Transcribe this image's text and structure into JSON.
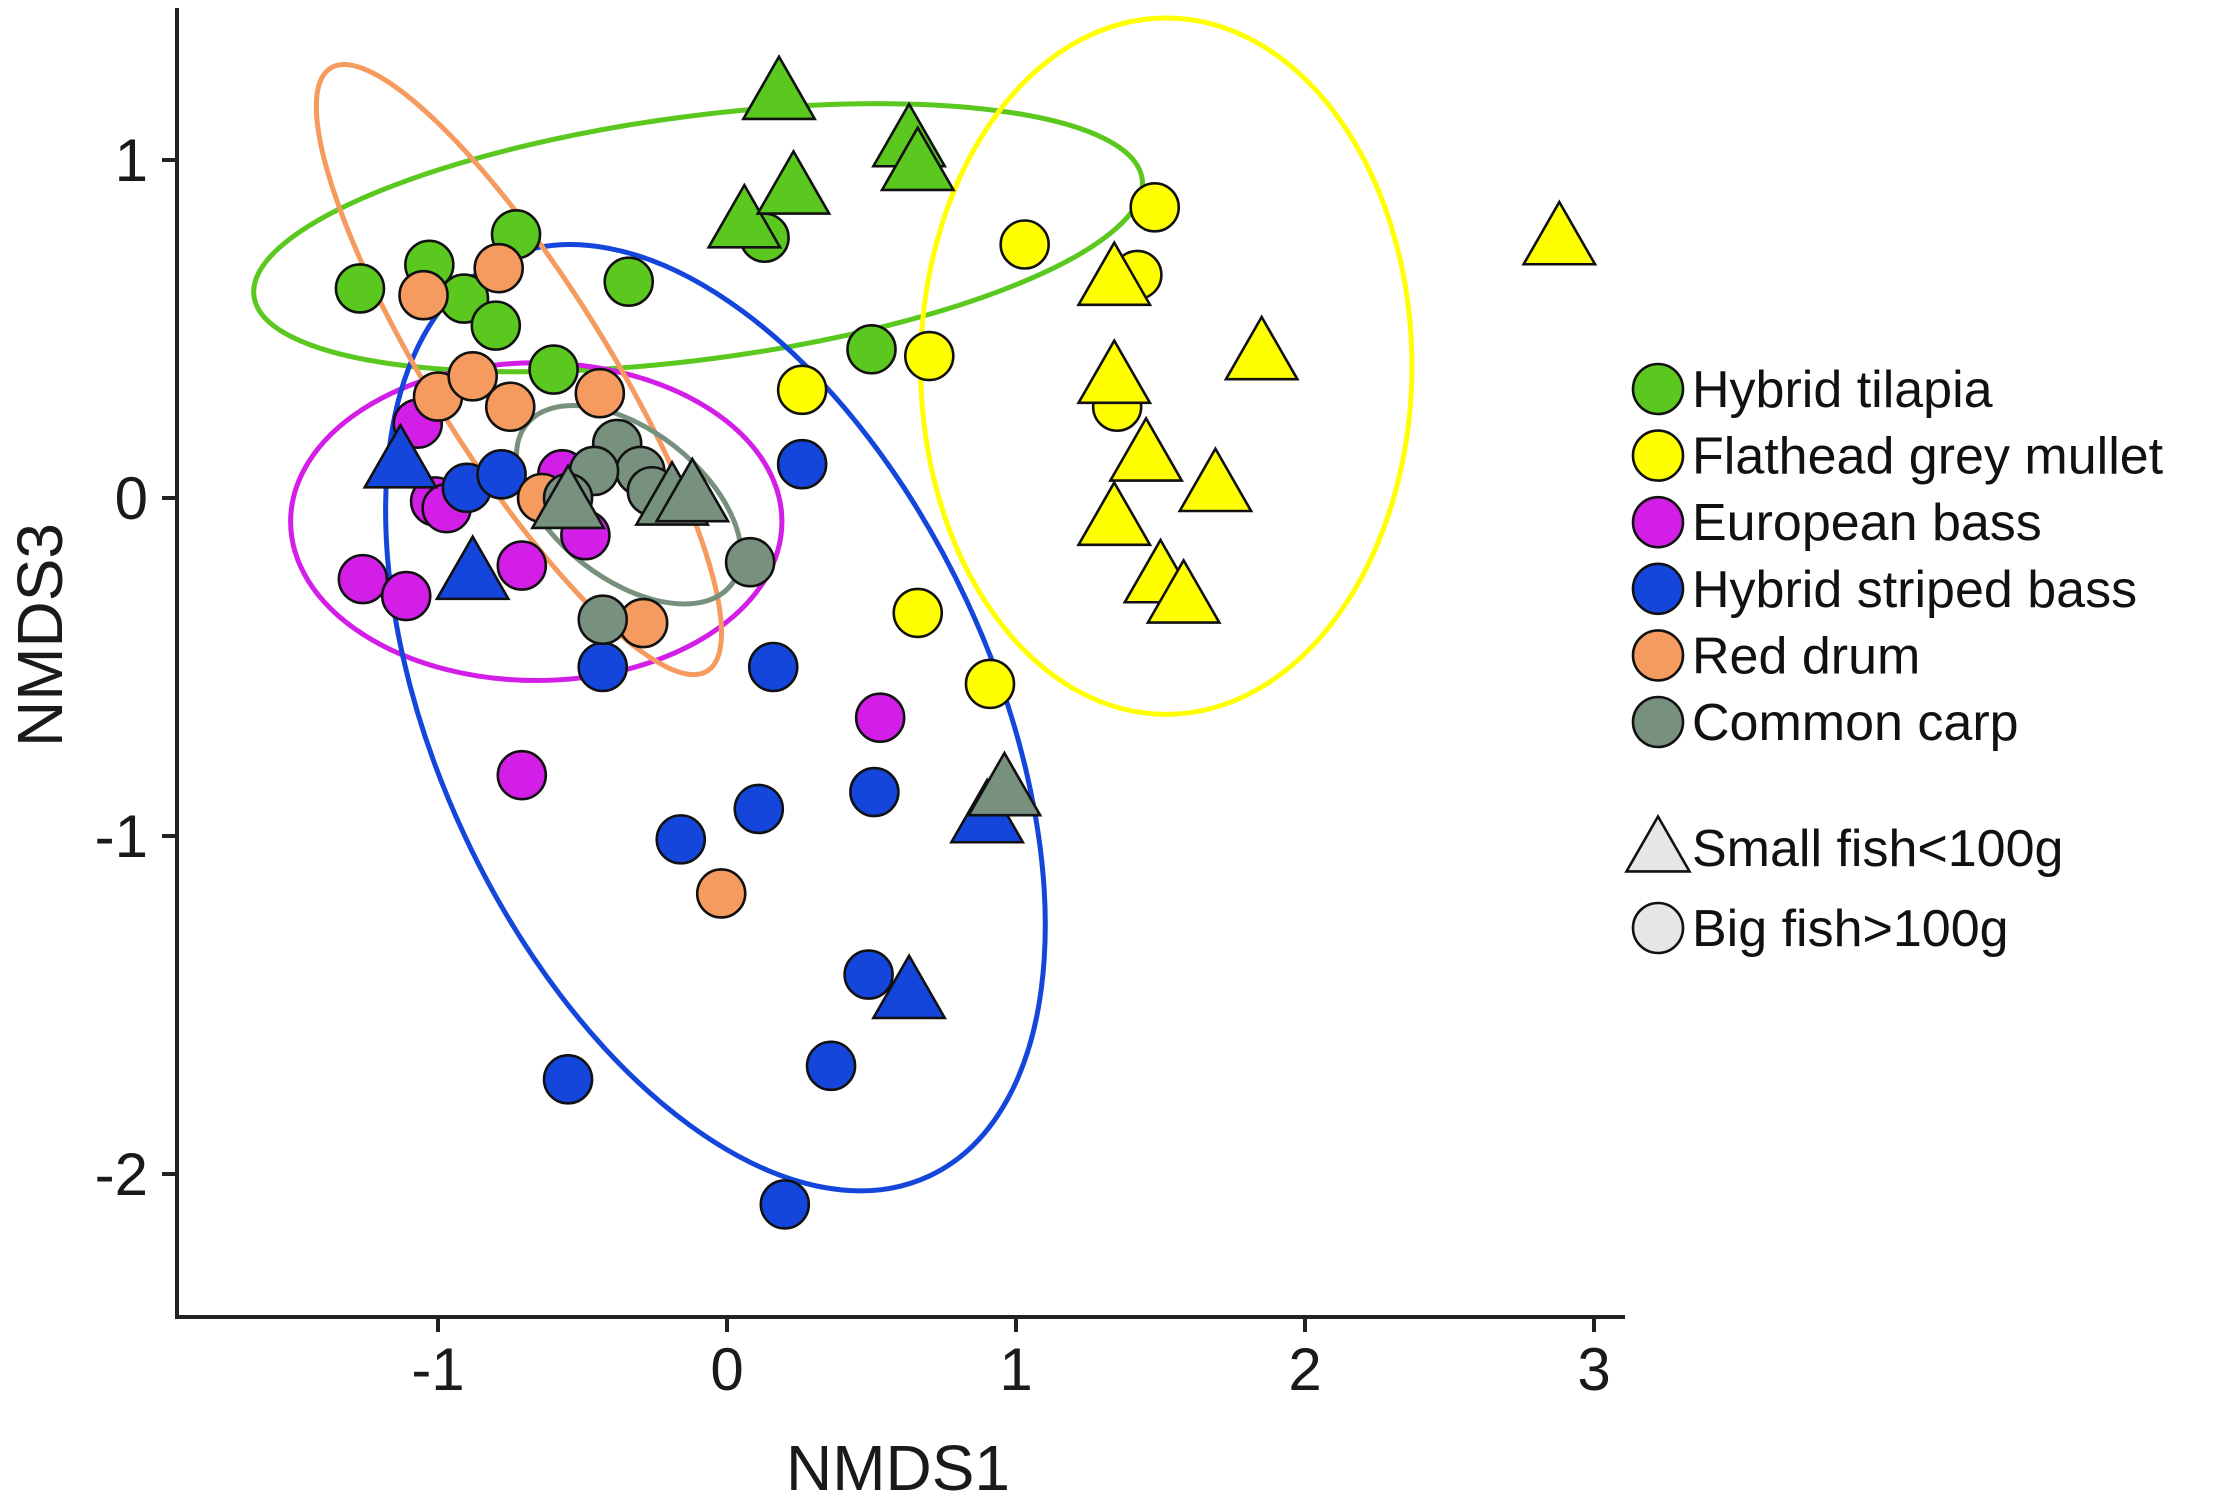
{
  "chart_data": {
    "type": "scatter",
    "title": "",
    "xlabel": "NMDS1",
    "ylabel": "NMDS3",
    "xlim": [
      -1.9,
      3.1
    ],
    "ylim": [
      -2.4,
      1.45
    ],
    "xticks": [
      -1,
      0,
      1,
      2,
      3
    ],
    "yticks": [
      -2,
      -1,
      0,
      1
    ],
    "xtick_labels": [
      "-1",
      "0",
      "1",
      "2",
      "3"
    ],
    "ytick_labels": [
      "-2",
      "-1",
      "0",
      "1"
    ],
    "grid": false,
    "legend_position": "right",
    "series": [
      {
        "name": "Hybrid tilapia",
        "color": "#5ac81e",
        "ellipse": {
          "cx": -0.1,
          "cy": 0.77,
          "rx": 1.55,
          "ry": 0.36,
          "angle_deg": 7.5
        },
        "big": [
          [
            -1.27,
            0.62
          ],
          [
            -1.03,
            0.69
          ],
          [
            -0.91,
            0.59
          ],
          [
            -0.8,
            0.51
          ],
          [
            -0.73,
            0.78
          ],
          [
            -0.6,
            0.38
          ],
          [
            -0.34,
            0.64
          ],
          [
            0.13,
            0.77
          ],
          [
            0.5,
            0.44
          ]
        ],
        "small": [
          [
            0.18,
            1.2
          ],
          [
            0.06,
            0.82
          ],
          [
            0.23,
            0.92
          ],
          [
            0.63,
            1.06
          ],
          [
            0.66,
            0.99
          ]
        ]
      },
      {
        "name": "Flathead grey mullet",
        "color": "#ffff00",
        "ellipse": {
          "cx": 1.52,
          "cy": 0.39,
          "rx": 0.85,
          "ry": 1.03,
          "angle_deg": 0
        },
        "big": [
          [
            0.26,
            0.32
          ],
          [
            0.7,
            0.42
          ],
          [
            1.03,
            0.75
          ],
          [
            1.48,
            0.86
          ],
          [
            1.42,
            0.66
          ],
          [
            1.35,
            0.27
          ],
          [
            0.66,
            -0.34
          ],
          [
            0.91,
            -0.55
          ]
        ],
        "small": [
          [
            1.34,
            0.65
          ],
          [
            1.34,
            0.36
          ],
          [
            1.45,
            0.13
          ],
          [
            1.85,
            0.43
          ],
          [
            1.69,
            0.04
          ],
          [
            1.34,
            -0.06
          ],
          [
            1.5,
            -0.23
          ],
          [
            1.58,
            -0.29
          ],
          [
            2.88,
            0.77
          ]
        ]
      },
      {
        "name": "European bass",
        "color": "#d21ee6",
        "ellipse": {
          "cx": -0.66,
          "cy": -0.07,
          "rx": 0.85,
          "ry": 0.47,
          "angle_deg": 0
        },
        "big": [
          [
            -1.07,
            0.22
          ],
          [
            -1.01,
            -0.01
          ],
          [
            -0.97,
            -0.03
          ],
          [
            -1.26,
            -0.24
          ],
          [
            -1.11,
            -0.29
          ],
          [
            -0.71,
            -0.2
          ],
          [
            -0.57,
            0.07
          ],
          [
            -0.49,
            -0.11
          ],
          [
            0.53,
            -0.65
          ],
          [
            -0.71,
            -0.82
          ]
        ],
        "small": []
      },
      {
        "name": "Hybrid striped bass",
        "color": "#1446dc",
        "ellipse": {
          "cx": -0.04,
          "cy": -0.65,
          "rx": 1.75,
          "ry": 0.82,
          "angle_deg": -65
        },
        "big": [
          [
            -0.9,
            0.03
          ],
          [
            -0.78,
            0.07
          ],
          [
            -0.43,
            -0.5
          ],
          [
            0.26,
            0.1
          ],
          [
            0.16,
            -0.5
          ],
          [
            0.51,
            -0.87
          ],
          [
            0.11,
            -0.92
          ],
          [
            -0.16,
            -1.01
          ],
          [
            0.49,
            -1.41
          ],
          [
            0.36,
            -1.68
          ],
          [
            -0.55,
            -1.72
          ],
          [
            0.2,
            -2.09
          ]
        ],
        "small": [
          [
            -1.13,
            0.11
          ],
          [
            -0.88,
            -0.22
          ],
          [
            0.9,
            -0.94
          ],
          [
            0.63,
            -1.46
          ]
        ]
      },
      {
        "name": "Red drum",
        "color": "#f59b5f",
        "ellipse": {
          "cx": -0.72,
          "cy": 0.38,
          "rx": 1.23,
          "ry": 0.26,
          "angle_deg": -58
        },
        "big": [
          [
            -1.05,
            0.6
          ],
          [
            -0.79,
            0.68
          ],
          [
            -1.0,
            0.3
          ],
          [
            -0.88,
            0.36
          ],
          [
            -0.75,
            0.27
          ],
          [
            -0.44,
            0.31
          ],
          [
            -0.29,
            -0.37
          ],
          [
            -0.02,
            -1.17
          ],
          [
            -0.64,
            0.0
          ]
        ],
        "small": []
      },
      {
        "name": "Common carp",
        "color": "#78917e",
        "ellipse": {
          "cx": -0.34,
          "cy": -0.02,
          "rx": 0.45,
          "ry": 0.22,
          "angle_deg": -38
        },
        "big": [
          [
            -0.38,
            0.16
          ],
          [
            -0.3,
            0.08
          ],
          [
            -0.46,
            0.08
          ],
          [
            -0.55,
            0.0
          ],
          [
            -0.26,
            0.02
          ],
          [
            -0.43,
            -0.36
          ],
          [
            0.08,
            -0.19
          ]
        ],
        "small": [
          [
            -0.55,
            -0.01
          ],
          [
            -0.19,
            0.0
          ],
          [
            -0.12,
            0.01
          ],
          [
            0.96,
            -0.86
          ]
        ]
      }
    ],
    "shape_legend": [
      {
        "shape": "triangle",
        "label": "Small fish<100g"
      },
      {
        "shape": "circle",
        "label": "Big fish>100g"
      }
    ]
  }
}
